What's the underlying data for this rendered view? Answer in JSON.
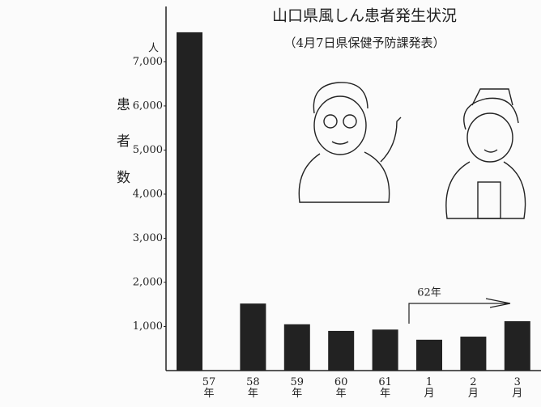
{
  "chart_data": {
    "type": "bar",
    "title": "山口県風しん患者発生状況",
    "subtitle": "（4月7日県保健予防課発表）",
    "y_unit": "人",
    "y_label": "患者数",
    "annotation": "62年",
    "categories": [
      "57年",
      "58年",
      "59年",
      "60年",
      "61年",
      "1月",
      "2月",
      "3月"
    ],
    "values": [
      7670,
      1520,
      1050,
      900,
      930,
      700,
      770,
      1120
    ],
    "color": "#222222",
    "ylim": [
      0,
      8200
    ],
    "yticks": [
      {
        "value": 1000,
        "label": "1,000"
      },
      {
        "value": 2000,
        "label": "2,000"
      },
      {
        "value": 3000,
        "label": "3,000"
      },
      {
        "value": 4000,
        "label": "4,000"
      },
      {
        "value": 5000,
        "label": "5,000"
      },
      {
        "value": 6000,
        "label": "6,000"
      },
      {
        "value": 7000,
        "label": "7,000"
      }
    ]
  }
}
